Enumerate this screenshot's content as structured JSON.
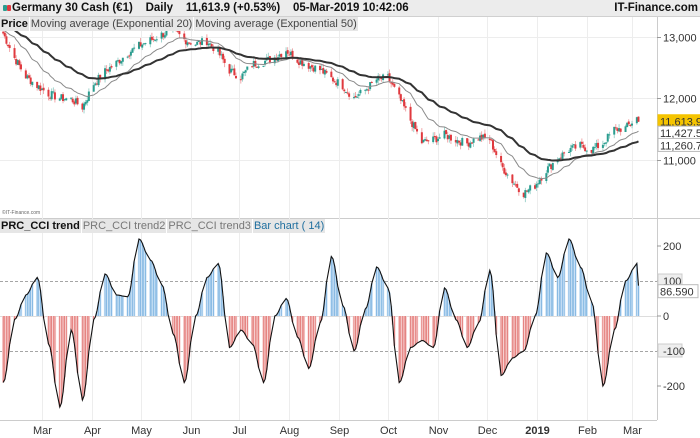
{
  "header": {
    "title": "Germany 30 Cash (€1)    Daily    11,613.9 (+0.53%)    05-Mar-2019 10:42:06",
    "brand": "IT-Finance.com"
  },
  "price_panel": {
    "legend": [
      "Price",
      "Moving average (Exponential 20)",
      "Moving average (Exponential 50)"
    ],
    "copyright": "©IT-Finance.com"
  },
  "indicator_panel": {
    "legend": [
      "PRC_CCI trend",
      "PRC_CCI trend2",
      "PRC_CCI trend3",
      "Bar chart ( 14)"
    ]
  },
  "colors": {
    "up_candle": "#2a9d8f",
    "down_candle": "#e0393e",
    "ema20": "#8a8a8a",
    "ema50": "#333333",
    "last_price_badge": "#f5c400",
    "cci_positive_fill": "#cfe4f7",
    "cci_positive_bar": "#5b9fd6",
    "cci_negative_fill": "#f7d0d0",
    "cci_negative_bar": "#d9534f"
  },
  "chart_data": [
    {
      "type": "candlestick",
      "title": "Germany 30 Cash (€1)",
      "series_names": [
        "Price",
        "Moving average (Exponential 20)",
        "Moving average (Exponential 50)"
      ],
      "y_ticks": [
        "13,000",
        "12,000",
        "11,000"
      ],
      "y_tick_values": [
        13000,
        12000,
        11000
      ],
      "ylim": [
        10250,
        13350
      ],
      "last_values": {
        "price": "11,613.9",
        "ema20": "11,427.5",
        "ema50": "11,260.7"
      },
      "grid": true,
      "dates": [
        "2018-02-05",
        "2018-02-12",
        "2018-02-19",
        "2018-02-26",
        "2018-03-05",
        "2018-03-12",
        "2018-03-19",
        "2018-03-26",
        "2018-04-02",
        "2018-04-09",
        "2018-04-16",
        "2018-04-23",
        "2018-04-30",
        "2018-05-07",
        "2018-05-14",
        "2018-05-21",
        "2018-05-28",
        "2018-06-04",
        "2018-06-11",
        "2018-06-18",
        "2018-06-25",
        "2018-07-02",
        "2018-07-09",
        "2018-07-16",
        "2018-07-23",
        "2018-07-30",
        "2018-08-06",
        "2018-08-13",
        "2018-08-20",
        "2018-08-27",
        "2018-09-03",
        "2018-09-10",
        "2018-09-17",
        "2018-09-24",
        "2018-10-01",
        "2018-10-08",
        "2018-10-15",
        "2018-10-22",
        "2018-10-29",
        "2018-11-05",
        "2018-11-12",
        "2018-11-19",
        "2018-11-26",
        "2018-12-03",
        "2018-12-10",
        "2018-12-17",
        "2018-12-24",
        "2018-12-31",
        "2019-01-07",
        "2019-01-14",
        "2019-01-21",
        "2019-01-28",
        "2019-02-04",
        "2019-02-11",
        "2019-02-18",
        "2019-02-25",
        "2019-03-04",
        "2019-03-05"
      ],
      "close": [
        13050,
        12650,
        12350,
        12200,
        12070,
        12000,
        11980,
        11850,
        12230,
        12430,
        12570,
        12730,
        12850,
        12940,
        13030,
        13110,
        12950,
        12880,
        12930,
        12740,
        12450,
        12340,
        12550,
        12590,
        12660,
        12780,
        12620,
        12530,
        12460,
        12320,
        12200,
        12000,
        12130,
        12300,
        12330,
        12000,
        11640,
        11280,
        11320,
        11400,
        11320,
        11260,
        11360,
        11330,
        10900,
        10650,
        10450,
        10580,
        10830,
        11020,
        11160,
        11220,
        11160,
        11260,
        11490,
        11510,
        11680,
        11613.9
      ]
    },
    {
      "type": "bar",
      "title": "PRC_CCI trend",
      "y_ticks": [
        "200",
        "100",
        "0",
        "-100",
        "-200"
      ],
      "y_tick_values": [
        200,
        100,
        0,
        -100,
        -200
      ],
      "ylim": [
        -300,
        290
      ],
      "reference_lines": [
        100,
        -100
      ],
      "last_value": "86.590",
      "grid": true,
      "values": [
        -190,
        -10,
        60,
        110,
        -80,
        -260,
        -40,
        -240,
        -10,
        120,
        60,
        55,
        220,
        160,
        90,
        -50,
        -190,
        0,
        110,
        150,
        -90,
        -40,
        -80,
        -190,
        0,
        50,
        -60,
        -150,
        -20,
        170,
        30,
        -100,
        20,
        140,
        80,
        -190,
        -90,
        -70,
        -90,
        80,
        -10,
        -90,
        -20,
        130,
        -170,
        -120,
        -100,
        0,
        180,
        110,
        220,
        140,
        40,
        -200,
        -40,
        100,
        150,
        86.59
      ]
    }
  ],
  "x_axis": {
    "labels": [
      "Mar",
      "Apr",
      "May",
      "Jun",
      "Jul",
      "Aug",
      "Sep",
      "Oct",
      "Nov",
      "Dec",
      "2019",
      "Feb",
      "Mar"
    ],
    "label_dates": [
      "2018-03-01",
      "2018-04-01",
      "2018-05-01",
      "2018-06-01",
      "2018-07-01",
      "2018-08-01",
      "2018-09-01",
      "2018-10-01",
      "2018-11-01",
      "2018-12-01",
      "2019-01-01",
      "2019-02-01",
      "2019-03-01"
    ]
  }
}
